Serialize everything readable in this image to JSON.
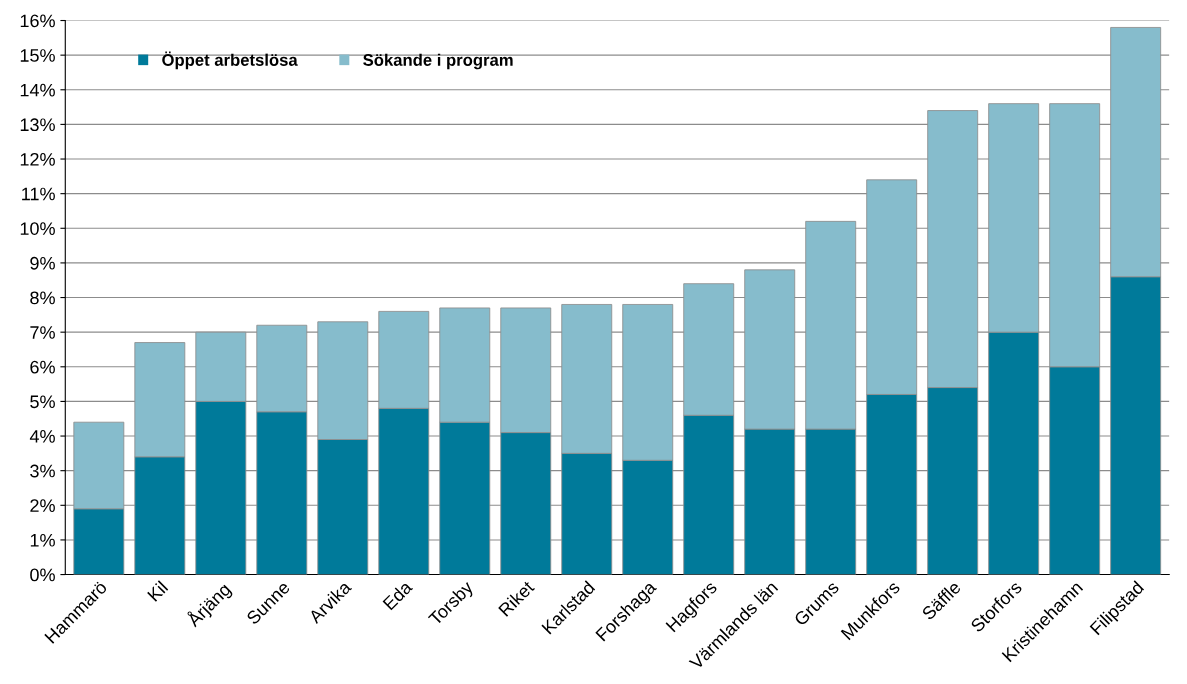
{
  "chart_data": {
    "type": "bar",
    "stacked": true,
    "categories": [
      "Hammarö",
      "Kil",
      "Årjäng",
      "Sunne",
      "Arvika",
      "Eda",
      "Torsby",
      "Riket",
      "Karlstad",
      "Forshaga",
      "Hagfors",
      "Värmlands län",
      "Grums",
      "Munkfors",
      "Säffle",
      "Storfors",
      "Kristinehamn",
      "Filipstad"
    ],
    "series": [
      {
        "name": "Öppet arbetslösa",
        "color": "#007a9a",
        "values": [
          1.9,
          3.4,
          5.0,
          4.7,
          3.9,
          4.8,
          4.4,
          4.1,
          3.5,
          3.3,
          4.6,
          4.2,
          4.2,
          5.2,
          5.4,
          7.0,
          6.0,
          8.6
        ]
      },
      {
        "name": "Sökande i program",
        "color": "#86bccc",
        "values": [
          2.5,
          3.3,
          2.0,
          2.5,
          3.4,
          2.8,
          3.3,
          3.6,
          4.3,
          4.5,
          3.8,
          4.6,
          6.0,
          6.2,
          8.0,
          6.6,
          7.6,
          7.2
        ]
      }
    ],
    "ylim": [
      0,
      16
    ],
    "yticks": [
      {
        "value": 0,
        "label": "0%"
      },
      {
        "value": 1,
        "label": "1%"
      },
      {
        "value": 2,
        "label": "2%"
      },
      {
        "value": 3,
        "label": "3%"
      },
      {
        "value": 4,
        "label": "4%"
      },
      {
        "value": 5,
        "label": "5%"
      },
      {
        "value": 6,
        "label": "6%"
      },
      {
        "value": 7,
        "label": "7%"
      },
      {
        "value": 8,
        "label": "8%"
      },
      {
        "value": 9,
        "label": "9%"
      },
      {
        "value": 10,
        "label": "10%"
      },
      {
        "value": 11,
        "label": "11%"
      },
      {
        "value": 12,
        "label": "12%"
      },
      {
        "value": 13,
        "label": "13%"
      },
      {
        "value": 14,
        "label": "14%"
      },
      {
        "value": 15,
        "label": "15%"
      },
      {
        "value": 16,
        "label": "16%"
      }
    ],
    "grid": "y",
    "legend": "top left"
  }
}
